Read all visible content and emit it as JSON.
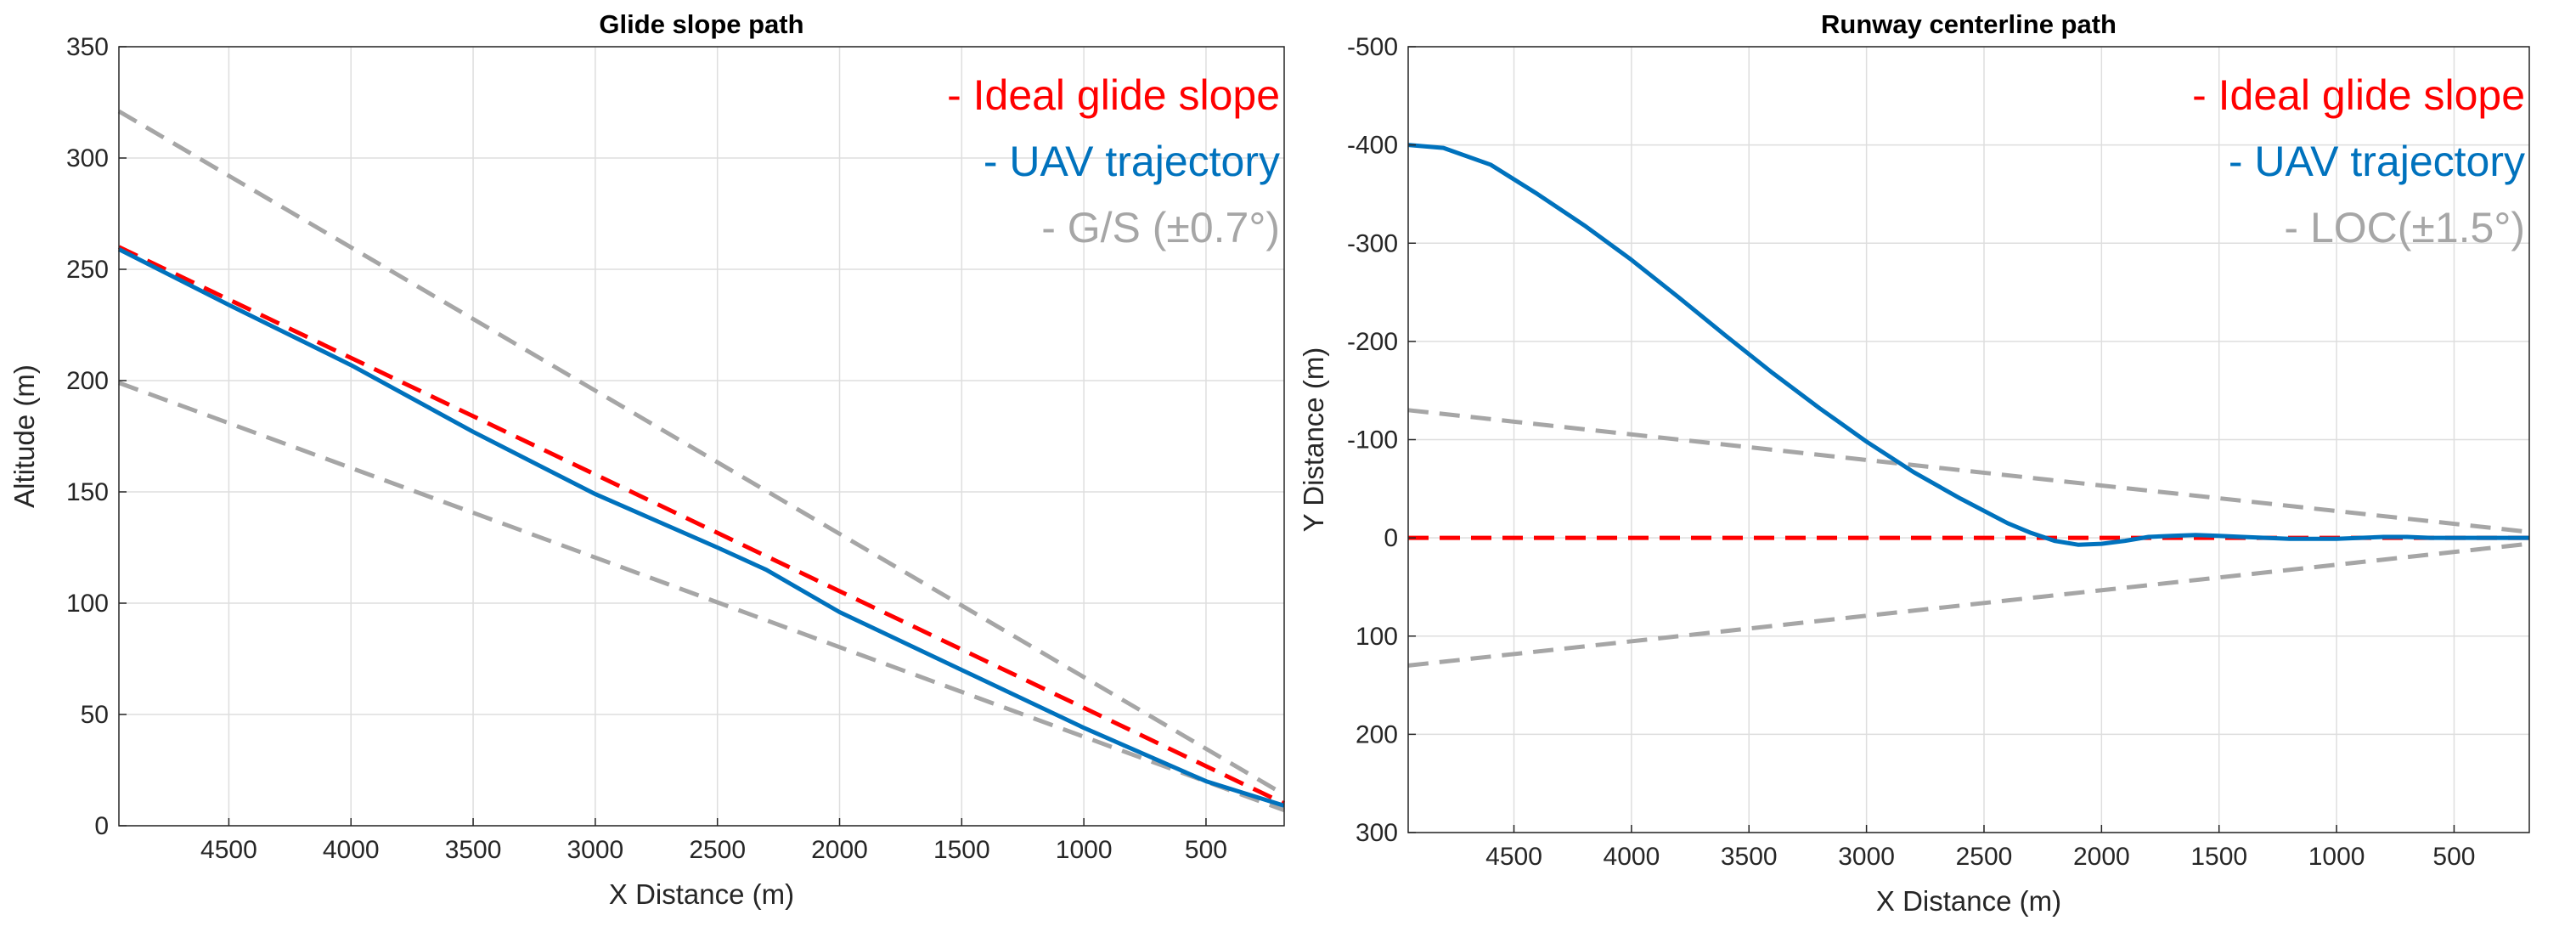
{
  "chart_data": [
    {
      "type": "line",
      "title": "Glide slope path",
      "xlabel": "X Distance (m)",
      "ylabel": "Altitude (m)",
      "xlim": [
        4950,
        180
      ],
      "ylim": [
        0,
        350
      ],
      "x_reversed": true,
      "y_reversed": false,
      "grid": true,
      "legend_position": "top-right",
      "xticks": [
        4500,
        4000,
        3500,
        3000,
        2500,
        2000,
        1500,
        1000,
        500
      ],
      "xtick_labels": [
        "4500",
        "4000",
        "3500",
        "3000",
        "2500",
        "2000",
        "1500",
        "1000",
        "500"
      ],
      "yticks": [
        0,
        50,
        100,
        150,
        200,
        250,
        300,
        350
      ],
      "ytick_labels": [
        "0",
        "50",
        "100",
        "150",
        "200",
        "250",
        "300",
        "350"
      ],
      "series": [
        {
          "name": "Ideal glide slope",
          "legend_label": "- Ideal glide slope",
          "color": "#ff0000",
          "style": "dashed",
          "x": [
            4950,
            180
          ],
          "y": [
            260,
            10
          ]
        },
        {
          "name": "UAV trajectory",
          "legend_label": "- UAV trajectory",
          "color": "#0072bd",
          "style": "solid",
          "x": [
            4950,
            4500,
            4000,
            3500,
            3000,
            2500,
            2300,
            2000,
            1500,
            1000,
            500,
            180
          ],
          "y": [
            259,
            234,
            207,
            177,
            149,
            125,
            115,
            96,
            70,
            44,
            20,
            9
          ]
        },
        {
          "name": "G/S upper limit",
          "legend_label": "- G/S (±0.7°)",
          "color": "#a6a6a6",
          "style": "dashed",
          "x": [
            4950,
            180
          ],
          "y": [
            321,
            14
          ]
        },
        {
          "name": "G/S lower limit",
          "legend_label": "",
          "color": "#a6a6a6",
          "style": "dashed",
          "x": [
            4950,
            180
          ],
          "y": [
            199,
            7
          ]
        }
      ]
    },
    {
      "type": "line",
      "title": "Runway centerline path",
      "xlabel": "X Distance (m)",
      "ylabel": "Y Distance (m)",
      "xlim": [
        4950,
        180
      ],
      "ylim": [
        -500,
        300
      ],
      "x_reversed": true,
      "y_reversed": true,
      "grid": true,
      "legend_position": "top-right",
      "xticks": [
        4500,
        4000,
        3500,
        3000,
        2500,
        2000,
        1500,
        1000,
        500
      ],
      "xtick_labels": [
        "4500",
        "4000",
        "3500",
        "3000",
        "2500",
        "2000",
        "1500",
        "1000",
        "500"
      ],
      "yticks": [
        -500,
        -400,
        -300,
        -200,
        -100,
        0,
        100,
        200,
        300
      ],
      "ytick_labels": [
        "-500",
        "-400",
        "-300",
        "-200",
        "-100",
        "0",
        "100",
        "200",
        "300"
      ],
      "series": [
        {
          "name": "Ideal glide slope",
          "legend_label": "- Ideal glide slope",
          "color": "#ff0000",
          "style": "dashed",
          "x": [
            4950,
            180
          ],
          "y": [
            0,
            0
          ]
        },
        {
          "name": "UAV trajectory",
          "legend_label": "- UAV trajectory",
          "color": "#0072bd",
          "style": "solid",
          "x": [
            4950,
            4800,
            4600,
            4400,
            4200,
            4000,
            3800,
            3600,
            3400,
            3200,
            3000,
            2800,
            2600,
            2400,
            2300,
            2200,
            2100,
            2000,
            1900,
            1800,
            1700,
            1600,
            1500,
            1400,
            1300,
            1200,
            1100,
            1000,
            900,
            800,
            700,
            600,
            500,
            400,
            300,
            180
          ],
          "y": [
            -400,
            -397,
            -380,
            -350,
            -318,
            -283,
            -245,
            -206,
            -168,
            -132,
            -98,
            -67,
            -40,
            -15,
            -5,
            3,
            7,
            6,
            3,
            -1,
            -2,
            -3,
            -2,
            -1,
            0,
            1,
            1,
            1,
            0,
            -1,
            -1,
            0,
            0,
            0,
            0,
            0
          ]
        },
        {
          "name": "LOC upper limit",
          "legend_label": "- LOC(±1.5°)",
          "color": "#a6a6a6",
          "style": "dashed",
          "x": [
            4950,
            180
          ],
          "y": [
            -130,
            -6
          ]
        },
        {
          "name": "LOC lower limit",
          "legend_label": "",
          "color": "#a6a6a6",
          "style": "dashed",
          "x": [
            4950,
            180
          ],
          "y": [
            130,
            6
          ]
        }
      ]
    }
  ]
}
